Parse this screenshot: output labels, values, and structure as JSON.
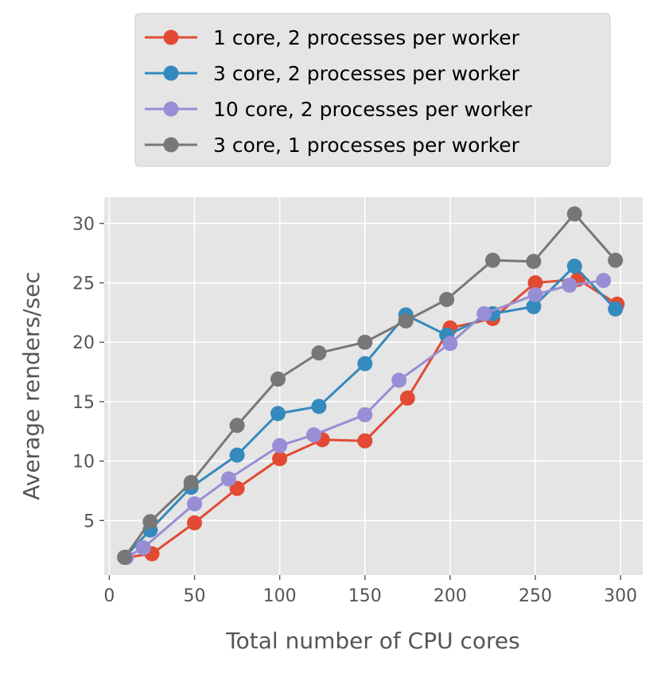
{
  "chart_data": {
    "type": "line",
    "title": "",
    "xlabel": "Total number of CPU cores",
    "ylabel": "Average renders/sec",
    "xlim": [
      -3,
      313
    ],
    "ylim": [
      0.4,
      32.2
    ],
    "xticks": [
      0,
      50,
      100,
      150,
      200,
      250,
      300
    ],
    "yticks": [
      5,
      10,
      15,
      20,
      25,
      30
    ],
    "xtick_labels": [
      "0",
      "50",
      "100",
      "150",
      "200",
      "250",
      "300"
    ],
    "ytick_labels": [
      "5",
      "10",
      "15",
      "20",
      "25",
      "30"
    ],
    "grid": true,
    "legend_position": "top-center (outside plot)",
    "series": [
      {
        "name": "1 core, 2 processes per worker",
        "color": "#E24A33",
        "x": [
          10,
          25,
          50,
          75,
          100,
          125,
          150,
          175,
          200,
          225,
          250,
          275,
          298
        ],
        "y": [
          1.9,
          2.2,
          4.8,
          7.7,
          10.2,
          11.8,
          11.7,
          15.3,
          21.2,
          22.0,
          25.0,
          25.3,
          23.2
        ]
      },
      {
        "name": "3 core, 2 processes per worker",
        "color": "#348ABD",
        "x": [
          9,
          24,
          48,
          75,
          99,
          123,
          150,
          174,
          198,
          225,
          249,
          273,
          297
        ],
        "y": [
          1.9,
          4.2,
          7.8,
          10.5,
          14.0,
          14.6,
          18.2,
          22.3,
          20.6,
          22.4,
          23.0,
          26.4,
          22.8
        ]
      },
      {
        "name": "10 core, 2 processes per worker",
        "color": "#988ED5",
        "x": [
          10,
          20,
          50,
          70,
          100,
          120,
          150,
          170,
          200,
          220,
          250,
          270,
          290
        ],
        "y": [
          1.9,
          2.7,
          6.4,
          8.5,
          11.3,
          12.2,
          13.9,
          16.8,
          19.9,
          22.4,
          24.0,
          24.8,
          25.2
        ]
      },
      {
        "name": "3 core, 1 processes per worker",
        "color": "#777777",
        "x": [
          9,
          24,
          48,
          75,
          99,
          123,
          150,
          174,
          198,
          225,
          249,
          273,
          297
        ],
        "y": [
          1.9,
          4.9,
          8.2,
          13.0,
          16.9,
          19.1,
          20.0,
          21.8,
          23.6,
          26.9,
          26.8,
          30.8,
          26.9
        ]
      }
    ]
  }
}
